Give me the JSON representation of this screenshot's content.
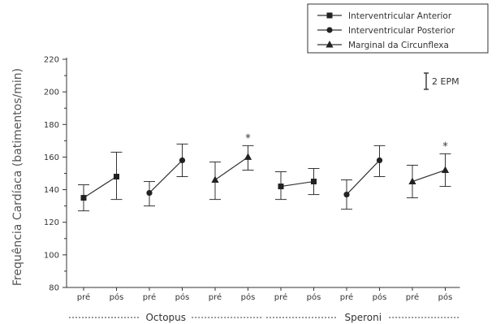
{
  "chart_data": {
    "type": "line",
    "ylabel": "Frequência Cardíaca (batimentos/min)",
    "ylim": [
      80,
      220
    ],
    "yticks": [
      80,
      100,
      120,
      140,
      160,
      180,
      200,
      220
    ],
    "categories": [
      "pré",
      "pós",
      "pré",
      "pós",
      "pré",
      "pós",
      "pré",
      "pós",
      "pré",
      "pós",
      "pré",
      "pós"
    ],
    "groups": [
      {
        "label": "Octopus",
        "range": [
          0,
          5
        ]
      },
      {
        "label": "Speroni",
        "range": [
          6,
          11
        ]
      }
    ],
    "legend": {
      "placement": "top-right",
      "entries": [
        {
          "label": "Interventricular Anterior",
          "marker": "square"
        },
        {
          "label": "Interventricular Posterior",
          "marker": "circle"
        },
        {
          "label": "Marginal da Circunflexa",
          "marker": "triangle"
        }
      ]
    },
    "errorbar_legend": "2 EPM",
    "series": [
      {
        "marker": "square",
        "points": [
          {
            "x": 0,
            "y": 135,
            "low": 127,
            "high": 143
          },
          {
            "x": 1,
            "y": 148,
            "low": 134,
            "high": 163
          }
        ]
      },
      {
        "marker": "circle",
        "points": [
          {
            "x": 2,
            "y": 138,
            "low": 130,
            "high": 145
          },
          {
            "x": 3,
            "y": 158,
            "low": 148,
            "high": 168
          }
        ]
      },
      {
        "marker": "triangle",
        "points": [
          {
            "x": 4,
            "y": 146,
            "low": 134,
            "high": 157
          },
          {
            "x": 5,
            "y": 160,
            "low": 152,
            "high": 167
          }
        ]
      },
      {
        "marker": "square",
        "points": [
          {
            "x": 6,
            "y": 142,
            "low": 134,
            "high": 151
          },
          {
            "x": 7,
            "y": 145,
            "low": 137,
            "high": 153
          }
        ]
      },
      {
        "marker": "circle",
        "points": [
          {
            "x": 8,
            "y": 137,
            "low": 128,
            "high": 146
          },
          {
            "x": 9,
            "y": 158,
            "low": 148,
            "high": 167
          }
        ]
      },
      {
        "marker": "triangle",
        "points": [
          {
            "x": 10,
            "y": 145,
            "low": 135,
            "high": 155
          },
          {
            "x": 11,
            "y": 152,
            "low": 142,
            "high": 162
          }
        ]
      }
    ],
    "annotations": [
      {
        "text": "*",
        "x": 5
      },
      {
        "text": "*",
        "x": 11
      }
    ],
    "colors": {
      "line": "#333333",
      "marker": "#222222"
    }
  }
}
